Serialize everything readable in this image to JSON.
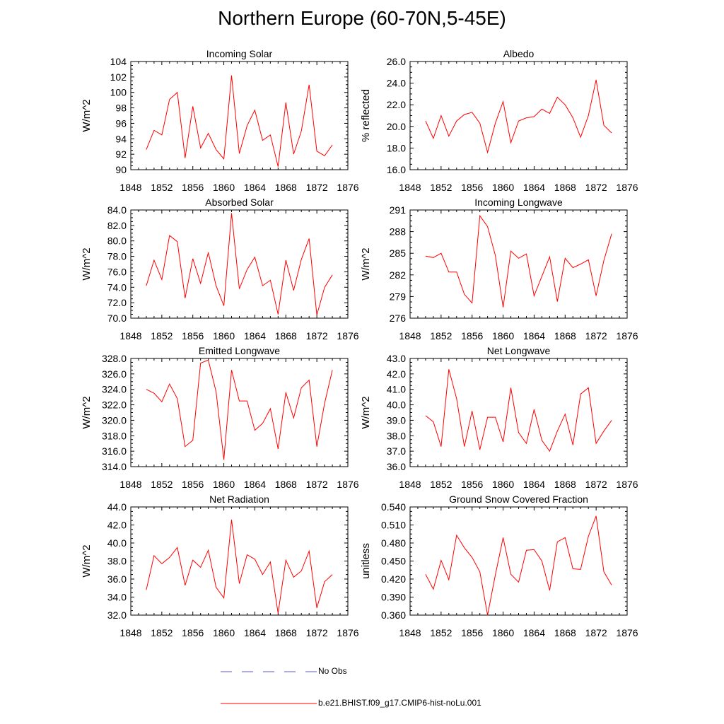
{
  "title": "Northern Europe (60-70N,5-45E)",
  "colors": {
    "model": "#ff0000",
    "obs": "#5a5acd"
  },
  "legend": {
    "obs_label": "No Obs",
    "model_label": "b.e21.BHIST.f09_g17.CMIP6-hist-noLu.001"
  },
  "chart_data": [
    {
      "type": "line",
      "title": "Incoming Solar",
      "ylabel": "W/m^2",
      "xlim": [
        1848,
        1876
      ],
      "ylim": [
        90,
        104
      ],
      "xticks": [
        "1848",
        "1852",
        "1856",
        "1860",
        "1864",
        "1868",
        "1872",
        "1876"
      ],
      "yticks": [
        "90",
        "92",
        "94",
        "96",
        "98",
        "100",
        "102",
        "104"
      ],
      "series": [
        {
          "x": [
            1850,
            1851,
            1852,
            1853,
            1854,
            1855,
            1856,
            1857,
            1858,
            1859,
            1860,
            1861,
            1862,
            1863,
            1864,
            1865,
            1866,
            1867,
            1868,
            1869,
            1870,
            1871,
            1872,
            1873,
            1874
          ],
          "values": [
            92.6,
            95.1,
            94.5,
            99.1,
            100.0,
            91.5,
            98.2,
            92.8,
            94.7,
            92.6,
            91.4,
            102.2,
            92.1,
            95.7,
            97.7,
            93.8,
            94.5,
            90.4,
            98.7,
            92.0,
            95.0,
            101.0,
            92.4,
            91.8,
            93.2
          ]
        }
      ]
    },
    {
      "type": "line",
      "title": "Albedo",
      "ylabel": "% reflected",
      "xlim": [
        1848,
        1876
      ],
      "ylim": [
        16.0,
        26.0
      ],
      "xticks": [
        "1848",
        "1852",
        "1856",
        "1860",
        "1864",
        "1868",
        "1872",
        "1876"
      ],
      "yticks": [
        "16.0",
        "18.0",
        "20.0",
        "22.0",
        "24.0",
        "26.0"
      ],
      "series": [
        {
          "x": [
            1850,
            1851,
            1852,
            1853,
            1854,
            1855,
            1856,
            1857,
            1858,
            1859,
            1860,
            1861,
            1862,
            1863,
            1864,
            1865,
            1866,
            1867,
            1868,
            1869,
            1870,
            1871,
            1872,
            1873,
            1874
          ],
          "values": [
            20.5,
            18.9,
            21.0,
            19.1,
            20.5,
            21.1,
            21.3,
            20.3,
            17.6,
            20.3,
            22.3,
            18.5,
            20.5,
            20.8,
            20.9,
            21.6,
            21.2,
            22.7,
            22.0,
            20.8,
            19.0,
            21.0,
            24.3,
            20.1,
            19.4
          ]
        }
      ]
    },
    {
      "type": "line",
      "title": "Absorbed Solar",
      "ylabel": "W/m^2",
      "xlim": [
        1848,
        1876
      ],
      "ylim": [
        70.0,
        84.0
      ],
      "xticks": [
        "1848",
        "1852",
        "1856",
        "1860",
        "1864",
        "1868",
        "1872",
        "1876"
      ],
      "yticks": [
        "70.0",
        "72.0",
        "74.0",
        "76.0",
        "78.0",
        "80.0",
        "82.0",
        "84.0"
      ],
      "series": [
        {
          "x": [
            1850,
            1851,
            1852,
            1853,
            1854,
            1855,
            1856,
            1857,
            1858,
            1859,
            1860,
            1861,
            1862,
            1863,
            1864,
            1865,
            1866,
            1867,
            1868,
            1869,
            1870,
            1871,
            1872,
            1873,
            1874
          ],
          "values": [
            74.2,
            77.5,
            75.0,
            80.7,
            79.9,
            72.6,
            77.7,
            74.5,
            78.5,
            74.2,
            71.6,
            83.6,
            73.8,
            76.3,
            77.9,
            74.2,
            74.9,
            70.5,
            77.5,
            73.6,
            77.6,
            80.3,
            70.4,
            74.0,
            75.6
          ]
        }
      ]
    },
    {
      "type": "line",
      "title": "Incoming Longwave",
      "ylabel": "W/m^2",
      "xlim": [
        1848,
        1876
      ],
      "ylim": [
        276,
        291
      ],
      "xticks": [
        "1848",
        "1852",
        "1856",
        "1860",
        "1864",
        "1868",
        "1872",
        "1876"
      ],
      "yticks": [
        "276",
        "279",
        "282",
        "285",
        "288",
        "291"
      ],
      "series": [
        {
          "x": [
            1850,
            1851,
            1852,
            1853,
            1854,
            1855,
            1856,
            1857,
            1858,
            1859,
            1860,
            1861,
            1862,
            1863,
            1864,
            1865,
            1866,
            1867,
            1868,
            1869,
            1870,
            1871,
            1872,
            1873,
            1874
          ],
          "values": [
            284.6,
            284.4,
            285.0,
            282.4,
            282.4,
            279.3,
            278.1,
            290.2,
            288.7,
            284.7,
            277.5,
            285.3,
            284.3,
            284.9,
            279.1,
            281.8,
            284.5,
            278.3,
            284.3,
            283.0,
            283.5,
            284.1,
            279.1,
            284.0,
            287.7
          ]
        }
      ]
    },
    {
      "type": "line",
      "title": "Emitted Longwave",
      "ylabel": "W/m^2",
      "xlim": [
        1848,
        1876
      ],
      "ylim": [
        314.0,
        328.0
      ],
      "xticks": [
        "1848",
        "1852",
        "1856",
        "1860",
        "1864",
        "1868",
        "1872",
        "1876"
      ],
      "yticks": [
        "314.0",
        "316.0",
        "318.0",
        "320.0",
        "322.0",
        "324.0",
        "326.0",
        "328.0"
      ],
      "series": [
        {
          "x": [
            1850,
            1851,
            1852,
            1853,
            1854,
            1855,
            1856,
            1857,
            1858,
            1859,
            1860,
            1861,
            1862,
            1863,
            1864,
            1865,
            1866,
            1867,
            1868,
            1869,
            1870,
            1871,
            1872,
            1873,
            1874
          ],
          "values": [
            324.0,
            323.5,
            322.4,
            324.7,
            322.8,
            316.6,
            317.4,
            327.4,
            327.8,
            323.7,
            314.9,
            326.5,
            322.5,
            322.5,
            318.7,
            319.6,
            321.5,
            316.3,
            323.6,
            320.3,
            324.2,
            325.2,
            316.6,
            322.2,
            326.5
          ]
        }
      ]
    },
    {
      "type": "line",
      "title": "Net Longwave",
      "ylabel": "W/m^2",
      "xlim": [
        1848,
        1876
      ],
      "ylim": [
        36.0,
        43.0
      ],
      "xticks": [
        "1848",
        "1852",
        "1856",
        "1860",
        "1864",
        "1868",
        "1872",
        "1876"
      ],
      "yticks": [
        "36.0",
        "37.0",
        "38.0",
        "39.0",
        "40.0",
        "41.0",
        "42.0",
        "43.0"
      ],
      "series": [
        {
          "x": [
            1850,
            1851,
            1852,
            1853,
            1854,
            1855,
            1856,
            1857,
            1858,
            1859,
            1860,
            1861,
            1862,
            1863,
            1864,
            1865,
            1866,
            1867,
            1868,
            1869,
            1870,
            1871,
            1872,
            1873,
            1874
          ],
          "values": [
            39.3,
            38.9,
            37.3,
            42.3,
            40.4,
            37.3,
            39.6,
            37.1,
            39.2,
            39.2,
            37.6,
            41.1,
            38.2,
            37.5,
            39.7,
            37.7,
            37.0,
            38.3,
            39.4,
            37.4,
            40.7,
            41.1,
            37.5,
            38.3,
            39.0
          ]
        }
      ]
    },
    {
      "type": "line",
      "title": "Net Radiation",
      "ylabel": "W/m^2",
      "xlim": [
        1848,
        1876
      ],
      "ylim": [
        32.0,
        44.0
      ],
      "xticks": [
        "1848",
        "1852",
        "1856",
        "1860",
        "1864",
        "1868",
        "1872",
        "1876"
      ],
      "yticks": [
        "32.0",
        "34.0",
        "36.0",
        "38.0",
        "40.0",
        "42.0",
        "44.0"
      ],
      "series": [
        {
          "x": [
            1850,
            1851,
            1852,
            1853,
            1854,
            1855,
            1856,
            1857,
            1858,
            1859,
            1860,
            1861,
            1862,
            1863,
            1864,
            1865,
            1866,
            1867,
            1868,
            1869,
            1870,
            1871,
            1872,
            1873,
            1874
          ],
          "values": [
            34.8,
            38.6,
            37.7,
            38.4,
            39.5,
            35.3,
            38.1,
            37.3,
            39.2,
            35.1,
            33.9,
            42.6,
            35.5,
            38.7,
            38.2,
            36.5,
            37.9,
            32.2,
            38.1,
            36.2,
            36.9,
            39.1,
            32.8,
            35.7,
            36.5
          ]
        }
      ]
    },
    {
      "type": "line",
      "title": "Ground Snow Covered Fraction",
      "ylabel": "unitless",
      "xlim": [
        1848,
        1876
      ],
      "ylim": [
        0.36,
        0.54
      ],
      "xticks": [
        "1848",
        "1852",
        "1856",
        "1860",
        "1864",
        "1868",
        "1872",
        "1876"
      ],
      "yticks": [
        "0.360",
        "0.390",
        "0.420",
        "0.450",
        "0.480",
        "0.510",
        "0.540"
      ],
      "series": [
        {
          "x": [
            1850,
            1851,
            1852,
            1853,
            1854,
            1855,
            1856,
            1857,
            1858,
            1859,
            1860,
            1861,
            1862,
            1863,
            1864,
            1865,
            1866,
            1867,
            1868,
            1869,
            1870,
            1871,
            1872,
            1873,
            1874
          ],
          "values": [
            0.428,
            0.403,
            0.451,
            0.419,
            0.493,
            0.472,
            0.456,
            0.432,
            0.36,
            0.427,
            0.489,
            0.428,
            0.415,
            0.468,
            0.469,
            0.45,
            0.401,
            0.482,
            0.489,
            0.437,
            0.436,
            0.491,
            0.525,
            0.432,
            0.41
          ]
        }
      ]
    }
  ]
}
